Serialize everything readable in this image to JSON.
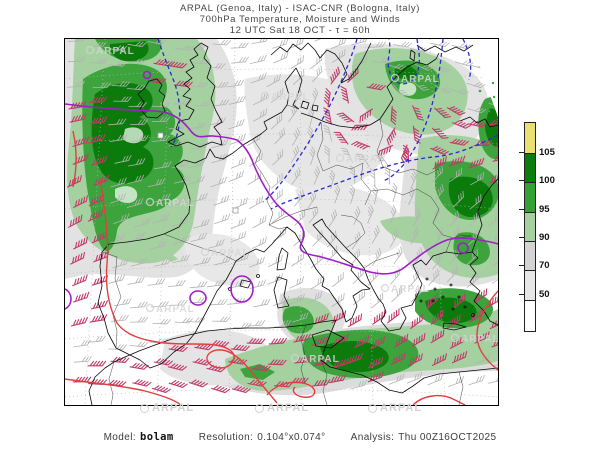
{
  "header": {
    "line1": "ARPAL (Genoa, Italy)  -  ISAC-CNR (Bologna, Italy)",
    "line2": "700hPa Temperature, Moisture and Winds",
    "line3": "12 UTC Sat 18 OCT  -  τ = 60h"
  },
  "footer": {
    "model_label": "Model:",
    "model_value": "bolam",
    "resolution_label": "Resolution:",
    "resolution_value": "0.104°x0.074°",
    "analysis_label": "Analysis:",
    "analysis_value": "Thu 00Z16OCT2025"
  },
  "colorbar": {
    "boundaries": [
      "105",
      "100",
      "95",
      "90",
      "70",
      "50"
    ],
    "segment_colors": [
      "#e9df72",
      "#0a7d0a",
      "#33a133",
      "#a5d0a0",
      "#d3d3d3",
      "#e6e6e6",
      "#ffffff"
    ],
    "segment_heights": [
      30,
      28,
      29,
      28,
      28,
      29,
      30
    ]
  },
  "watermark": {
    "text": "ARPAL"
  },
  "map_colors": {
    "coastline": "#0a0a0a",
    "country_border": "#333333",
    "contour_purple": "#a01ec8",
    "contour_blue_dashed": "#2a2ad0",
    "contour_red": "#e04040",
    "wind_barb_weak": "#b3b3b3",
    "wind_barb_strong": "#c13a6a",
    "moisture_green_light": "#a5d0a0",
    "moisture_green_mid": "#3da33d",
    "moisture_green_dark": "#0b7c0b",
    "moisture_gray": "#e0e0e0",
    "graticule": "#b8b8b8"
  }
}
